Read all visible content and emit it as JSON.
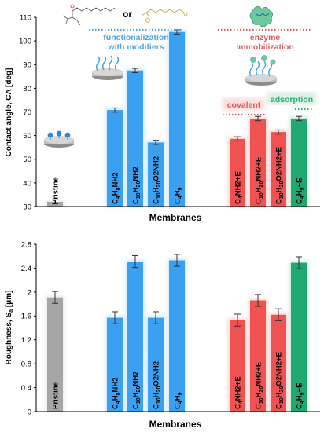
{
  "chart_data": [
    {
      "type": "bar",
      "ylabel": "Contact angle, CA [deg]",
      "xlabel": "Membranes",
      "ylim": [
        30,
        110
      ],
      "yticks": [
        30,
        40,
        50,
        60,
        70,
        80,
        90,
        100,
        110
      ],
      "categories": [
        {
          "text": "Pristine",
          "pre": "Pristine",
          "s1": "",
          "m": "",
          "s2": "",
          "post": ""
        },
        {
          "text": "C4H8NH2",
          "pre": "C",
          "s1": "4",
          "m": "H",
          "s2": "8",
          "post": "NH2"
        },
        {
          "text": "C10H20NH2",
          "pre": "C",
          "s1": "10",
          "m": "H",
          "s2": "20",
          "post": "NH2"
        },
        {
          "text": "C10H20O2NH2",
          "pre": "C",
          "s1": "10",
          "m": "H",
          "s2": "20",
          "post": "O2NH2"
        },
        {
          "text": "C4H9",
          "pre": "C",
          "s1": "4",
          "m": "H",
          "s2": "9",
          "post": ""
        },
        {
          "text": "C4NH2+E",
          "pre": "C",
          "s1": "4",
          "m": "NH2+E",
          "s2": "",
          "post": ""
        },
        {
          "text": "C10H20NH2+E",
          "pre": "C",
          "s1": "10",
          "m": "H",
          "s2": "20",
          "post": "NH2+E"
        },
        {
          "text": "C10H20O2NH2+E",
          "pre": "C",
          "s1": "10",
          "m": "H",
          "s2": "20",
          "post": "O2NH2+E"
        },
        {
          "text": "C4H9+E",
          "pre": "C",
          "s1": "4",
          "m": "H",
          "s2": "9",
          "post": "+E"
        }
      ],
      "values": [
        32.0,
        70.8,
        87.5,
        57.1,
        103.8,
        58.6,
        67.2,
        61.5,
        67.2
      ],
      "errors": [
        0.9,
        0.9,
        0.9,
        0.9,
        0.9,
        0.9,
        0.9,
        0.9,
        0.9
      ],
      "colors": [
        "#a6a6a6",
        "#3aa0ef",
        "#3aa0ef",
        "#3aa0ef",
        "#3aa0ef",
        "#f05252",
        "#f05252",
        "#f05252",
        "#1fa870"
      ],
      "annotations": {
        "functionalization": "functionalization\nwith modifiers",
        "enzyme": "enzyme\nimmobilization",
        "covalent": "covalent",
        "adsorption": "adsorption",
        "or": "or"
      }
    },
    {
      "type": "bar",
      "ylabel": "Roughness, Sa [μm]",
      "xlabel": "Membranes",
      "ylim": [
        0,
        2.8
      ],
      "yticks": [
        "0",
        "0.4",
        "0.8",
        "1.2",
        "1.6",
        "2",
        "2.4",
        "2.8"
      ],
      "categories": [
        {
          "text": "Pristine",
          "pre": "Pristine",
          "s1": "",
          "m": "",
          "s2": "",
          "post": ""
        },
        {
          "text": "C4H8NH2",
          "pre": "C",
          "s1": "4",
          "m": "H",
          "s2": "8",
          "post": "NH2"
        },
        {
          "text": "C10H20NH2",
          "pre": "C",
          "s1": "10",
          "m": "H",
          "s2": "20",
          "post": "NH2"
        },
        {
          "text": "C10H20O2NH2",
          "pre": "C",
          "s1": "10",
          "m": "H",
          "s2": "20",
          "post": "O2NH2"
        },
        {
          "text": "C4H9",
          "pre": "C",
          "s1": "4",
          "m": "H",
          "s2": "9",
          "post": ""
        },
        {
          "text": "C4NH2+E",
          "pre": "C",
          "s1": "4",
          "m": "NH2+E",
          "s2": "",
          "post": ""
        },
        {
          "text": "C10H20NH2+E",
          "pre": "C",
          "s1": "10",
          "m": "H",
          "s2": "20",
          "post": "NH2+E"
        },
        {
          "text": "C10H20O2NH2+E",
          "pre": "C",
          "s1": "10",
          "m": "H",
          "s2": "20",
          "post": "O2NH2+E"
        },
        {
          "text": "C4H9+E",
          "pre": "C",
          "s1": "4",
          "m": "H",
          "s2": "9",
          "post": "+E"
        }
      ],
      "values": [
        1.91,
        1.57,
        2.51,
        1.57,
        2.53,
        1.53,
        1.86,
        1.62,
        2.49
      ],
      "errors": [
        0.1,
        0.1,
        0.1,
        0.1,
        0.1,
        0.1,
        0.1,
        0.1,
        0.1
      ],
      "colors": [
        "#a6a6a6",
        "#3aa0ef",
        "#3aa0ef",
        "#3aa0ef",
        "#3aa0ef",
        "#f05252",
        "#f05252",
        "#f05252",
        "#1fa870"
      ]
    }
  ],
  "colors": {
    "functionalization_text": "#4aa6e8",
    "enzyme_text": "#e15b5b",
    "covalent_text": "#e15b5b",
    "adsorption_text": "#2bb07a",
    "dotted_blue": "#4aa6e8",
    "dotted_red": "#e15b5b",
    "dotted_green": "#2bb07a"
  }
}
